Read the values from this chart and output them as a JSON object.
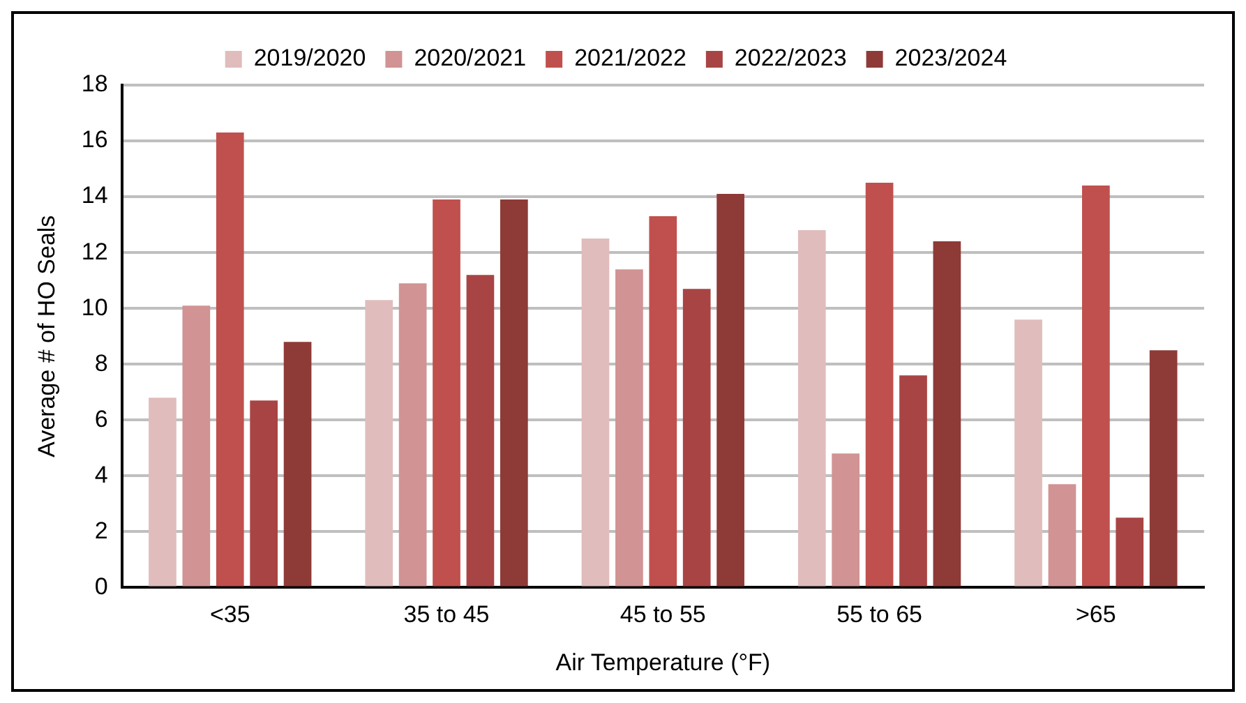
{
  "chart_data": {
    "type": "bar",
    "xlabel": "Air Temperature (°F)",
    "ylabel": "Average # of HO Seals",
    "categories": [
      "<35",
      "35 to 45",
      "45 to 55",
      "55 to 65",
      ">65"
    ],
    "series": [
      {
        "name": "2019/2020",
        "color": "#e0bcbc",
        "values": [
          6.8,
          10.3,
          12.5,
          12.8,
          9.6
        ]
      },
      {
        "name": "2020/2021",
        "color": "#d19393",
        "values": [
          10.1,
          10.9,
          11.4,
          4.8,
          3.7
        ]
      },
      {
        "name": "2021/2022",
        "color": "#c0504d",
        "values": [
          16.3,
          13.9,
          13.3,
          14.5,
          14.4
        ]
      },
      {
        "name": "2022/2023",
        "color": "#a94444",
        "values": [
          6.7,
          11.2,
          10.7,
          7.6,
          2.5
        ]
      },
      {
        "name": "2023/2024",
        "color": "#8e3a37",
        "values": [
          8.8,
          13.9,
          14.1,
          12.4,
          8.5
        ]
      }
    ],
    "ylim": [
      0,
      18
    ],
    "yticks": [
      0,
      2,
      4,
      6,
      8,
      10,
      12,
      14,
      16,
      18
    ],
    "grid": "y",
    "legend": "top"
  }
}
